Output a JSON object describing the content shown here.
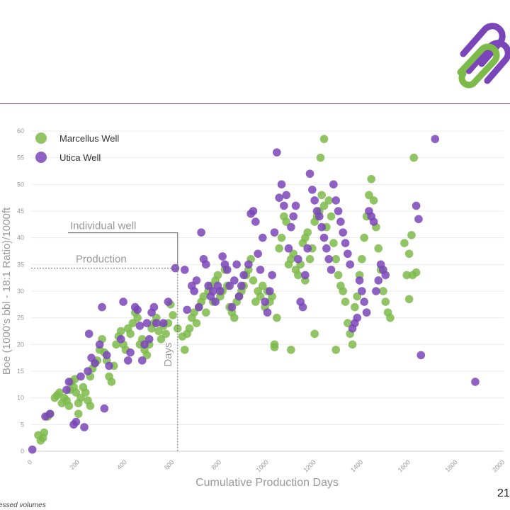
{
  "page": {
    "number": "21",
    "footnote": "essed volumes"
  },
  "colors": {
    "marcellus": "#7cba4a",
    "utica": "#7a45b8",
    "header_line": "#8a3c78",
    "logo_green": "#7cba4a",
    "logo_purple": "#7a45b8"
  },
  "logo": {
    "icon": "company-logo-icon"
  },
  "chart_data": {
    "type": "scatter",
    "xlabel": "Cumulative Production Days",
    "ylabel": "Boe (1000's bbl - 18:1 Ratio)/1000ft",
    "xlim": [
      0,
      2000
    ],
    "ylim": [
      0,
      60
    ],
    "xticks": [
      "0",
      "200",
      "400",
      "600",
      "800",
      "1000",
      "1200",
      "1400",
      "1600",
      "1800",
      "2000"
    ],
    "yticks": [
      "0",
      "5",
      "10",
      "15",
      "20",
      "25",
      "30",
      "35",
      "40",
      "45",
      "50",
      "55",
      "60"
    ],
    "grid": "horizontal",
    "legend": "top-left",
    "annotations": {
      "label_top": "Individual well",
      "label_bottom": "Production",
      "label_vertical": "Days",
      "point": [
        620,
        34.3
      ]
    },
    "series": [
      {
        "name": "Marcellus Well",
        "color": "#7cba4a",
        "points": [
          [
            40,
            2
          ],
          [
            30,
            3
          ],
          [
            50,
            2.5
          ],
          [
            55,
            3.5
          ],
          [
            70,
            6.5
          ],
          [
            80,
            7
          ],
          [
            100,
            10
          ],
          [
            110,
            10.5
          ],
          [
            120,
            11
          ],
          [
            130,
            9
          ],
          [
            140,
            10
          ],
          [
            150,
            9.5
          ],
          [
            160,
            8.5
          ],
          [
            165,
            11.5
          ],
          [
            170,
            13
          ],
          [
            180,
            12
          ],
          [
            185,
            13.5
          ],
          [
            190,
            11
          ],
          [
            200,
            9
          ],
          [
            200,
            7
          ],
          [
            210,
            10
          ],
          [
            220,
            12
          ],
          [
            230,
            11
          ],
          [
            240,
            9.5
          ],
          [
            250,
            8.5
          ],
          [
            250,
            14
          ],
          [
            260,
            15.5
          ],
          [
            270,
            16.5
          ],
          [
            280,
            17
          ],
          [
            290,
            19
          ],
          [
            300,
            21
          ],
          [
            310,
            18.5
          ],
          [
            320,
            17
          ],
          [
            330,
            14
          ],
          [
            340,
            13
          ],
          [
            350,
            16
          ],
          [
            360,
            20
          ],
          [
            370,
            21.5
          ],
          [
            380,
            22.5
          ],
          [
            390,
            20
          ],
          [
            400,
            19
          ],
          [
            410,
            23
          ],
          [
            420,
            22
          ],
          [
            430,
            24
          ],
          [
            440,
            26
          ],
          [
            450,
            25
          ],
          [
            460,
            20
          ],
          [
            470,
            21
          ],
          [
            480,
            19
          ],
          [
            490,
            18
          ],
          [
            500,
            20
          ],
          [
            510,
            23
          ],
          [
            520,
            24
          ],
          [
            530,
            25
          ],
          [
            540,
            22.5
          ],
          [
            550,
            21
          ],
          [
            560,
            23.5
          ],
          [
            570,
            22
          ],
          [
            580,
            24
          ],
          [
            590,
            27.5
          ],
          [
            600,
            25.5
          ],
          [
            620,
            23
          ],
          [
            640,
            21.5
          ],
          [
            650,
            19
          ],
          [
            660,
            22
          ],
          [
            670,
            23
          ],
          [
            680,
            25
          ],
          [
            690,
            26
          ],
          [
            700,
            24
          ],
          [
            710,
            27
          ],
          [
            720,
            28
          ],
          [
            730,
            29
          ],
          [
            740,
            26
          ],
          [
            750,
            30
          ],
          [
            760,
            31
          ],
          [
            770,
            28
          ],
          [
            780,
            32
          ],
          [
            790,
            33
          ],
          [
            800,
            29
          ],
          [
            810,
            30
          ],
          [
            820,
            34
          ],
          [
            830,
            31
          ],
          [
            840,
            27
          ],
          [
            850,
            26
          ],
          [
            860,
            25
          ],
          [
            870,
            28
          ],
          [
            880,
            29
          ],
          [
            890,
            30
          ],
          [
            900,
            31
          ],
          [
            910,
            33
          ],
          [
            920,
            34
          ],
          [
            930,
            36
          ],
          [
            940,
            32
          ],
          [
            950,
            28
          ],
          [
            960,
            30
          ],
          [
            970,
            29
          ],
          [
            980,
            31
          ],
          [
            990,
            27
          ],
          [
            1000,
            30
          ],
          [
            1010,
            28
          ],
          [
            1020,
            29
          ],
          [
            1030,
            20
          ],
          [
            1040,
            25
          ],
          [
            1050,
            38
          ],
          [
            1060,
            40
          ],
          [
            1070,
            44
          ],
          [
            1080,
            43
          ],
          [
            1090,
            35
          ],
          [
            1100,
            36
          ],
          [
            1110,
            37
          ],
          [
            1120,
            34
          ],
          [
            1130,
            33
          ],
          [
            1140,
            35
          ],
          [
            1150,
            39
          ],
          [
            1160,
            40
          ],
          [
            1170,
            41
          ],
          [
            1180,
            36
          ],
          [
            1190,
            38
          ],
          [
            1200,
            43
          ],
          [
            1210,
            44
          ],
          [
            1220,
            45
          ],
          [
            1230,
            48
          ],
          [
            1240,
            46
          ],
          [
            1250,
            42
          ],
          [
            1260,
            47
          ],
          [
            1270,
            44
          ],
          [
            1280,
            39
          ],
          [
            1290,
            36
          ],
          [
            1300,
            33
          ],
          [
            1310,
            31
          ],
          [
            1320,
            30
          ],
          [
            1330,
            28
          ],
          [
            1340,
            24
          ],
          [
            1350,
            22
          ],
          [
            1360,
            20
          ],
          [
            1370,
            27
          ],
          [
            1380,
            29
          ],
          [
            1390,
            33
          ],
          [
            1400,
            36
          ],
          [
            1410,
            40
          ],
          [
            1420,
            44
          ],
          [
            1430,
            48
          ],
          [
            1440,
            51
          ],
          [
            1450,
            47
          ],
          [
            1460,
            42
          ],
          [
            1470,
            38
          ],
          [
            1480,
            34
          ],
          [
            1490,
            30
          ],
          [
            1500,
            28
          ],
          [
            1510,
            26
          ],
          [
            1520,
            25
          ],
          [
            1240,
            58.5
          ],
          [
            1225,
            55
          ],
          [
            1030,
            19.5
          ],
          [
            1100,
            19
          ],
          [
            1160,
            32
          ],
          [
            1200,
            22
          ],
          [
            1290,
            19
          ],
          [
            1580,
            39
          ],
          [
            1590,
            33
          ],
          [
            1600,
            37
          ],
          [
            1610,
            40.5
          ],
          [
            1615,
            33
          ],
          [
            1620,
            55
          ],
          [
            1630,
            33.5
          ],
          [
            1600,
            28.5
          ]
        ]
      },
      {
        "name": "Utica Well",
        "color": "#7a45b8",
        "points": [
          [
            5,
            0.3
          ],
          [
            60,
            6.5
          ],
          [
            80,
            7
          ],
          [
            150,
            11.5
          ],
          [
            160,
            13
          ],
          [
            180,
            5
          ],
          [
            190,
            5.5
          ],
          [
            210,
            14
          ],
          [
            225,
            4.5
          ],
          [
            240,
            15
          ],
          [
            245,
            22
          ],
          [
            255,
            17.5
          ],
          [
            270,
            16.5
          ],
          [
            290,
            20
          ],
          [
            300,
            27
          ],
          [
            310,
            8
          ],
          [
            320,
            18
          ],
          [
            330,
            16
          ],
          [
            380,
            21
          ],
          [
            390,
            28
          ],
          [
            410,
            17
          ],
          [
            420,
            18.5
          ],
          [
            440,
            27
          ],
          [
            450,
            26.5
          ],
          [
            460,
            23.5
          ],
          [
            470,
            17
          ],
          [
            480,
            20
          ],
          [
            490,
            24
          ],
          [
            500,
            21
          ],
          [
            510,
            26
          ],
          [
            520,
            27
          ],
          [
            530,
            24
          ],
          [
            560,
            24
          ],
          [
            580,
            28
          ],
          [
            610,
            34.3
          ],
          [
            650,
            34
          ],
          [
            660,
            26.5
          ],
          [
            680,
            31
          ],
          [
            690,
            30
          ],
          [
            700,
            32
          ],
          [
            710,
            27
          ],
          [
            720,
            41
          ],
          [
            730,
            36
          ],
          [
            740,
            35
          ],
          [
            750,
            31
          ],
          [
            760,
            29
          ],
          [
            770,
            30
          ],
          [
            780,
            28
          ],
          [
            790,
            31
          ],
          [
            800,
            30
          ],
          [
            810,
            36.5
          ],
          [
            820,
            35
          ],
          [
            830,
            34
          ],
          [
            840,
            31
          ],
          [
            850,
            27
          ],
          [
            860,
            32
          ],
          [
            870,
            35
          ],
          [
            880,
            29
          ],
          [
            890,
            31
          ],
          [
            900,
            33
          ],
          [
            920,
            35
          ],
          [
            930,
            44.5
          ],
          [
            940,
            45
          ],
          [
            950,
            43
          ],
          [
            960,
            37
          ],
          [
            970,
            34
          ],
          [
            980,
            40
          ],
          [
            990,
            28
          ],
          [
            1000,
            26
          ],
          [
            1010,
            30
          ],
          [
            1020,
            33
          ],
          [
            1030,
            41
          ],
          [
            1040,
            56
          ],
          [
            1050,
            47.5
          ],
          [
            1060,
            50
          ],
          [
            1070,
            46
          ],
          [
            1080,
            48
          ],
          [
            1090,
            38
          ],
          [
            1100,
            42
          ],
          [
            1110,
            44
          ],
          [
            1120,
            46
          ],
          [
            1130,
            36
          ],
          [
            1140,
            28
          ],
          [
            1150,
            27
          ],
          [
            1160,
            33
          ],
          [
            1170,
            38
          ],
          [
            1180,
            52
          ],
          [
            1190,
            49
          ],
          [
            1200,
            47
          ],
          [
            1210,
            45
          ],
          [
            1220,
            44
          ],
          [
            1230,
            42
          ],
          [
            1240,
            40
          ],
          [
            1250,
            38
          ],
          [
            1260,
            36
          ],
          [
            1270,
            34
          ],
          [
            1280,
            50
          ],
          [
            1290,
            47
          ],
          [
            1300,
            45
          ],
          [
            1310,
            43
          ],
          [
            1320,
            41
          ],
          [
            1330,
            39
          ],
          [
            1340,
            37
          ],
          [
            1350,
            35
          ],
          [
            1360,
            23
          ],
          [
            1370,
            24
          ],
          [
            1380,
            25
          ],
          [
            1390,
            32
          ],
          [
            1400,
            30
          ],
          [
            1410,
            28
          ],
          [
            1420,
            26
          ],
          [
            1430,
            45
          ],
          [
            1440,
            44
          ],
          [
            1450,
            43
          ],
          [
            1460,
            30
          ],
          [
            1470,
            32
          ],
          [
            1480,
            35
          ],
          [
            1490,
            34
          ],
          [
            1500,
            33
          ],
          [
            1630,
            46
          ],
          [
            1640,
            43.5
          ],
          [
            1650,
            18
          ],
          [
            1710,
            58.5
          ],
          [
            1880,
            13
          ]
        ]
      }
    ]
  }
}
